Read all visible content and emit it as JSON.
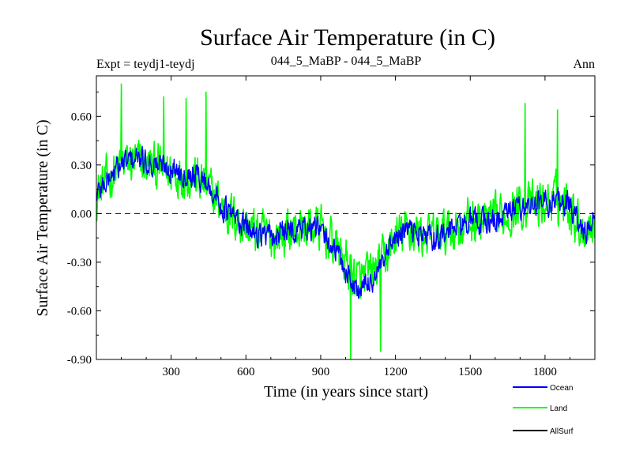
{
  "chart_data": {
    "type": "line",
    "title": "Surface Air Temperature (in C)",
    "subtitle_left": "Expt = teydj1-teydj",
    "subtitle_center": "044_5_MaBP - 044_5_MaBP",
    "subtitle_right": "Ann",
    "xlabel": "Time (in years since start)",
    "ylabel": "Surface Air Temperature (in C)",
    "xlim": [
      0,
      2000
    ],
    "ylim": [
      -0.9,
      0.85
    ],
    "x_ticks": [
      300,
      600,
      900,
      1200,
      1500,
      1800
    ],
    "x_tick_labels": [
      "300",
      "600",
      "900",
      "1200",
      "1500",
      "1800"
    ],
    "y_ticks": [
      -0.9,
      -0.6,
      -0.3,
      0.0,
      0.3,
      0.6
    ],
    "y_tick_labels": [
      "-0.90",
      "-0.60",
      "-0.30",
      "0.00",
      "0.30",
      "0.60"
    ],
    "zero_line": true,
    "legend": [
      {
        "name": "Ocean",
        "color": "#0000ff"
      },
      {
        "name": "Land",
        "color": "#00ff00"
      },
      {
        "name": "AllSurf",
        "color": "#000000"
      }
    ],
    "series": [
      {
        "name": "Land",
        "color": "#00ff00",
        "trend_x": [
          0,
          50,
          100,
          150,
          200,
          250,
          300,
          350,
          400,
          450,
          500,
          550,
          600,
          650,
          700,
          750,
          800,
          850,
          900,
          950,
          1000,
          1050,
          1100,
          1150,
          1200,
          1250,
          1300,
          1350,
          1400,
          1450,
          1500,
          1550,
          1600,
          1650,
          1700,
          1750,
          1800,
          1850,
          1900,
          1950,
          2000
        ],
        "trend_y": [
          0.12,
          0.22,
          0.3,
          0.32,
          0.3,
          0.28,
          0.26,
          0.24,
          0.22,
          0.15,
          0.05,
          -0.02,
          -0.08,
          -0.12,
          -0.15,
          -0.12,
          -0.1,
          -0.08,
          -0.1,
          -0.18,
          -0.3,
          -0.42,
          -0.38,
          -0.3,
          -0.15,
          -0.1,
          -0.12,
          -0.15,
          -0.12,
          -0.08,
          -0.05,
          -0.05,
          -0.05,
          0.0,
          0.05,
          0.05,
          0.06,
          0.1,
          0.05,
          -0.1,
          -0.05
        ],
        "amplitude": 0.22,
        "peaks_x": [
          100,
          270,
          360,
          440,
          1020,
          1140,
          1720,
          1850
        ],
        "peaks_y": [
          0.8,
          0.72,
          0.71,
          0.75,
          -0.9,
          -0.85,
          0.68,
          0.64
        ]
      },
      {
        "name": "Ocean",
        "color": "#0000ff",
        "trend_x": [
          0,
          50,
          100,
          150,
          200,
          250,
          300,
          350,
          400,
          450,
          500,
          550,
          600,
          650,
          700,
          750,
          800,
          850,
          900,
          950,
          1000,
          1050,
          1100,
          1150,
          1200,
          1250,
          1300,
          1350,
          1400,
          1450,
          1500,
          1550,
          1600,
          1650,
          1700,
          1750,
          1800,
          1850,
          1900,
          1950,
          2000
        ],
        "trend_y": [
          0.12,
          0.22,
          0.3,
          0.34,
          0.32,
          0.3,
          0.28,
          0.26,
          0.24,
          0.18,
          0.05,
          -0.02,
          -0.08,
          -0.12,
          -0.15,
          -0.12,
          -0.1,
          -0.08,
          -0.12,
          -0.2,
          -0.35,
          -0.48,
          -0.42,
          -0.32,
          -0.15,
          -0.1,
          -0.12,
          -0.15,
          -0.12,
          -0.08,
          -0.05,
          -0.05,
          -0.05,
          0.0,
          0.05,
          0.05,
          0.06,
          0.1,
          0.05,
          -0.12,
          -0.05
        ],
        "amplitude": 0.12
      },
      {
        "name": "AllSurf",
        "color": "#000000",
        "note": "hidden under Ocean trace"
      }
    ]
  }
}
